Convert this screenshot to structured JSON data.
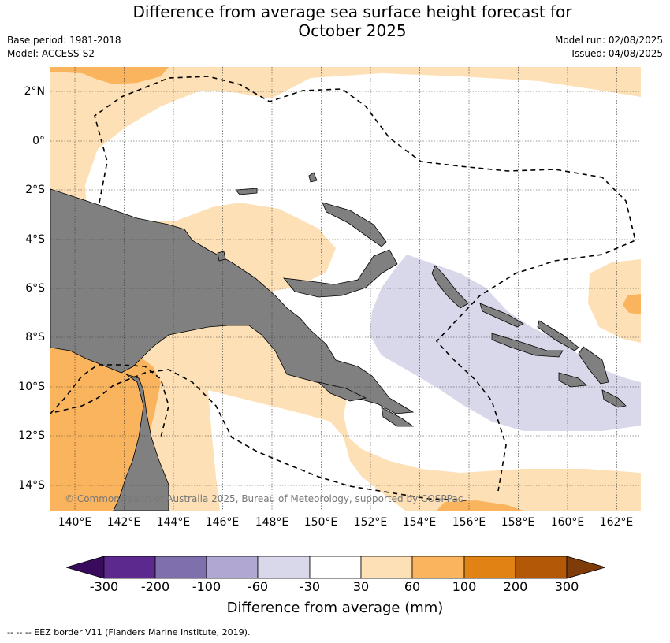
{
  "title_line1": "Difference from average sea surface height forecast for",
  "title_line2": "October 2025",
  "base_period": "Base period: 1981-2018",
  "model": "Model: ACCESS-S2",
  "model_run": "Model run: 02/08/2025",
  "issued": "Issued: 04/08/2025",
  "copyright": "© Commonwealth of Australia 2025, Bureau of Meteorology, supported by COSPPac",
  "lat_labels": [
    "2°N",
    "0°",
    "2°S",
    "4°S",
    "6°S",
    "8°S",
    "10°S",
    "12°S",
    "14°S"
  ],
  "lon_labels": [
    "140°E",
    "142°E",
    "144°E",
    "146°E",
    "148°E",
    "150°E",
    "152°E",
    "154°E",
    "156°E",
    "158°E",
    "160°E",
    "162°E"
  ],
  "colorbar": {
    "title": "Difference from average (mm)",
    "tick_labels": [
      "-300",
      "-200",
      "-100",
      "-60",
      "-30",
      "30",
      "60",
      "100",
      "200",
      "300"
    ],
    "colors": [
      "#3a0a5c",
      "#5c2a8e",
      "#7f70ad",
      "#b0a8d2",
      "#d8d8ea",
      "#ffffff",
      "#fde0b5",
      "#fbb45e",
      "#e08214",
      "#b35806",
      "#7f3b08"
    ]
  },
  "footer": "--  --  -- EEZ border V11 (Flanders Marine Institute, 2019).",
  "map": {
    "land_color": "#808080",
    "ocean_neutral_color": "#ffffff",
    "extent_lon": [
      139,
      163
    ],
    "extent_lat": [
      -15,
      3
    ]
  }
}
